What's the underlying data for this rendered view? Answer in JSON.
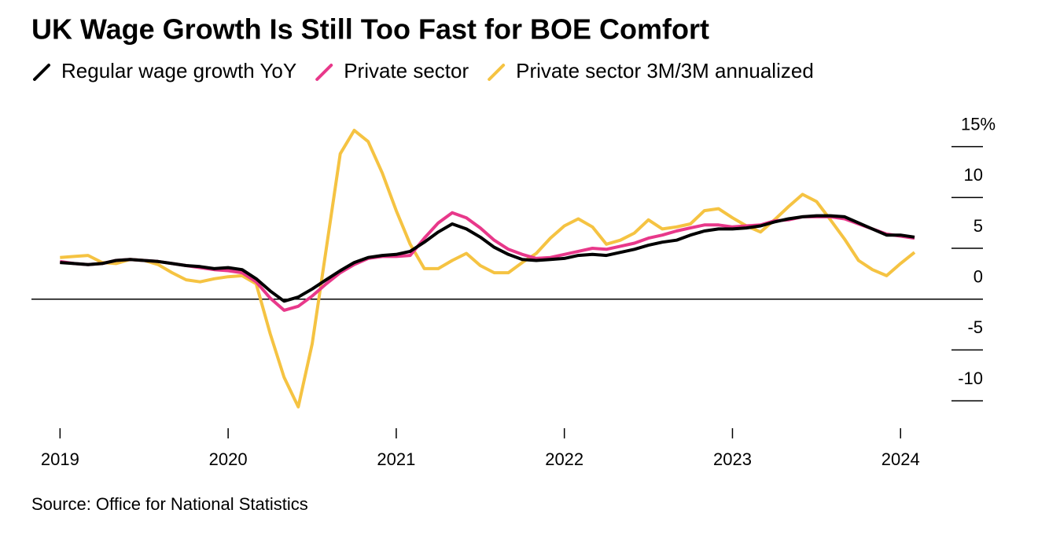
{
  "chart_data": {
    "type": "line",
    "title": "UK Wage Growth Is Still Too Fast for BOE Comfort",
    "source": "Source: Office for National Statistics",
    "x": [
      2019.0,
      2019.083,
      2019.167,
      2019.25,
      2019.333,
      2019.417,
      2019.5,
      2019.583,
      2019.667,
      2019.75,
      2019.833,
      2019.917,
      2020.0,
      2020.083,
      2020.167,
      2020.25,
      2020.333,
      2020.417,
      2020.5,
      2020.583,
      2020.667,
      2020.75,
      2020.833,
      2020.917,
      2021.0,
      2021.083,
      2021.167,
      2021.25,
      2021.333,
      2021.417,
      2021.5,
      2021.583,
      2021.667,
      2021.75,
      2021.833,
      2021.917,
      2022.0,
      2022.083,
      2022.167,
      2022.25,
      2022.333,
      2022.417,
      2022.5,
      2022.583,
      2022.667,
      2022.75,
      2022.833,
      2022.917,
      2023.0,
      2023.083,
      2023.167,
      2023.25,
      2023.333,
      2023.417,
      2023.5,
      2023.583,
      2023.667,
      2023.75,
      2023.833,
      2023.917,
      2024.0,
      2024.083
    ],
    "series": [
      {
        "name": "Private sector 3M/3M annualized",
        "color": "#f5c342",
        "values": [
          4.1,
          4.2,
          4.3,
          3.6,
          3.5,
          3.9,
          3.8,
          3.4,
          2.6,
          1.9,
          1.7,
          2.0,
          2.2,
          2.3,
          1.5,
          -3.4,
          -7.7,
          -10.6,
          -4.4,
          4.9,
          14.3,
          16.6,
          15.5,
          12.4,
          8.7,
          5.4,
          3.0,
          3.0,
          3.8,
          4.5,
          3.3,
          2.6,
          2.6,
          3.6,
          4.5,
          6.0,
          7.2,
          7.9,
          7.1,
          5.4,
          5.8,
          6.5,
          7.8,
          6.9,
          7.1,
          7.4,
          8.7,
          8.9,
          8.0,
          7.2,
          6.6,
          7.8,
          9.1,
          10.3,
          9.6,
          7.8,
          5.9,
          3.8,
          2.9,
          2.3,
          3.5,
          4.6
        ]
      },
      {
        "name": "Private sector",
        "color": "#e8388a",
        "values": [
          3.7,
          3.5,
          3.4,
          3.5,
          3.8,
          3.9,
          3.8,
          3.7,
          3.5,
          3.3,
          3.1,
          2.9,
          2.8,
          2.6,
          1.7,
          0.1,
          -1.1,
          -0.7,
          0.3,
          1.5,
          2.6,
          3.4,
          4.0,
          4.2,
          4.2,
          4.3,
          6.0,
          7.5,
          8.5,
          8.0,
          7.0,
          5.8,
          4.9,
          4.4,
          4.0,
          4.1,
          4.4,
          4.7,
          5.0,
          4.9,
          5.2,
          5.5,
          6.0,
          6.3,
          6.7,
          7.0,
          7.3,
          7.3,
          7.1,
          7.2,
          7.3,
          7.7,
          7.8,
          8.1,
          8.1,
          8.1,
          7.9,
          7.4,
          6.9,
          6.4,
          6.2,
          6.0
        ]
      },
      {
        "name": "Regular wage growth YoY",
        "color": "#000000",
        "values": [
          3.6,
          3.5,
          3.4,
          3.5,
          3.8,
          3.9,
          3.8,
          3.7,
          3.5,
          3.3,
          3.2,
          3.0,
          3.1,
          2.9,
          2.0,
          0.8,
          -0.2,
          0.2,
          1.0,
          1.9,
          2.8,
          3.6,
          4.1,
          4.3,
          4.4,
          4.7,
          5.6,
          6.6,
          7.4,
          6.9,
          6.1,
          5.1,
          4.4,
          3.9,
          3.8,
          3.9,
          4.0,
          4.3,
          4.4,
          4.3,
          4.6,
          4.9,
          5.3,
          5.6,
          5.8,
          6.3,
          6.7,
          6.9,
          6.9,
          7.0,
          7.2,
          7.6,
          7.9,
          8.1,
          8.2,
          8.2,
          8.1,
          7.5,
          6.9,
          6.3,
          6.3,
          6.1
        ]
      }
    ],
    "legend_order": [
      "Regular wage growth YoY",
      "Private sector",
      "Private sector 3M/3M annualized"
    ],
    "xlim": [
      2018.83,
      2024.49
    ],
    "xticks": [
      2019,
      2020,
      2021,
      2022,
      2023,
      2024
    ],
    "ylim": [
      -12.7,
      17.6
    ],
    "yticks": [
      {
        "value": 15,
        "label": "15%"
      },
      10,
      5,
      0,
      -5,
      -10
    ]
  }
}
